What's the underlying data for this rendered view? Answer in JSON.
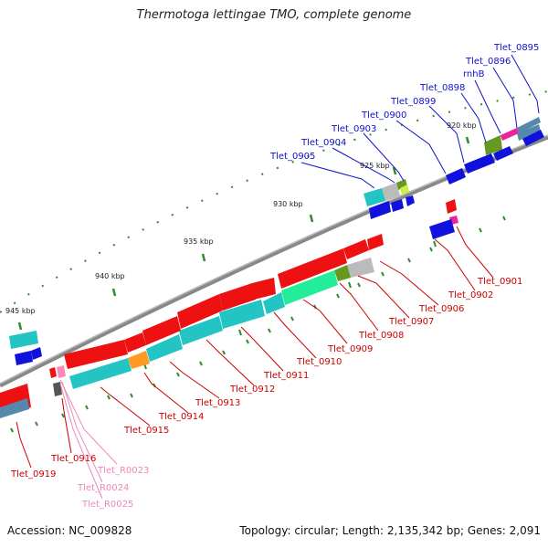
{
  "title": "Thermotoga lettingae TMO, complete genome",
  "footer": {
    "accession": "Accession: NC_009828",
    "summary": "Topology: circular; Length: 2,135,342 bp; Genes: 2,091"
  },
  "colors": {
    "backbone": "#888888",
    "tick": "#2e8b2e",
    "label_blue": "#1010cc",
    "label_red": "#cc0000",
    "label_pink": "#ee88bb",
    "gene_red": "#ee1111",
    "gene_blue": "#1111dd",
    "gene_cyan": "#22c4c4",
    "gene_steel": "#5588aa",
    "gene_green": "#22ee99",
    "gene_olive": "#669922",
    "gene_gray": "#bbbbbb",
    "gene_orange": "#ff9922",
    "gene_magenta": "#ee2299",
    "gene_pink": "#ff88bb",
    "gene_dark": "#555555"
  },
  "kbp_labels": [
    "920 kbp",
    "925 kbp",
    "930 kbp",
    "935 kbp",
    "940 kbp",
    "945 kbp"
  ],
  "labels_top": [
    "Tlet_0895",
    "Tlet_0896",
    "rnhB",
    "Tlet_0898",
    "Tlet_0899",
    "Tlet_0900",
    "Tlet_0903",
    "Tlet_0904",
    "Tlet_0905"
  ],
  "labels_bottom": [
    "Tlet_0901",
    "Tlet_0902",
    "Tlet_0906",
    "Tlet_0907",
    "Tlet_0908",
    "Tlet_0909",
    "Tlet_0910",
    "Tlet_0911",
    "Tlet_0912",
    "Tlet_0913",
    "Tlet_0914",
    "Tlet_0915",
    "Tlet_0916",
    "Tlet_0919"
  ],
  "labels_rna": [
    "Tlet_R0023",
    "Tlet_R0024",
    "Tlet_R0025"
  ]
}
